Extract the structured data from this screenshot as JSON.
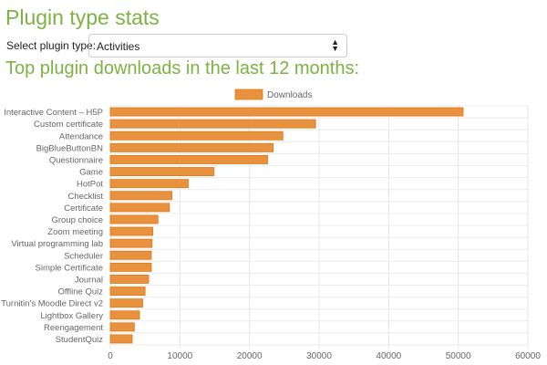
{
  "page": {
    "title": "Plugin type stats",
    "select_label": "Select plugin type:",
    "select_value": "Activities",
    "subtitle": "Top plugin downloads in the last 12 months:"
  },
  "chart_data": {
    "type": "bar",
    "orientation": "horizontal",
    "categories": [
      "Interactive Content – H5P",
      "Custom certificate",
      "Attendance",
      "BigBlueButtonBN",
      "Questionnaire",
      "Game",
      "HotPot",
      "Checklist",
      "Certificate",
      "Group choice",
      "Zoom meeting",
      "Virtual programming lab",
      "Scheduler",
      "Simple Certificate",
      "Journal",
      "Offline Quiz",
      "Turnitin's Moodle Direct v2",
      "Lightbox Gallery",
      "Reengagement",
      "StudentQuiz"
    ],
    "series": [
      {
        "name": "Downloads",
        "values": [
          50700,
          29500,
          24800,
          23400,
          22600,
          14900,
          11200,
          8850,
          8500,
          6850,
          6100,
          6000,
          5900,
          5900,
          5500,
          5000,
          4650,
          4200,
          3450,
          3150
        ]
      }
    ],
    "xlim": [
      0,
      60000
    ],
    "xticks": [
      0,
      10000,
      20000,
      30000,
      40000,
      50000,
      60000
    ],
    "grid": true,
    "legend": "top-center",
    "color": "#e8913f"
  }
}
